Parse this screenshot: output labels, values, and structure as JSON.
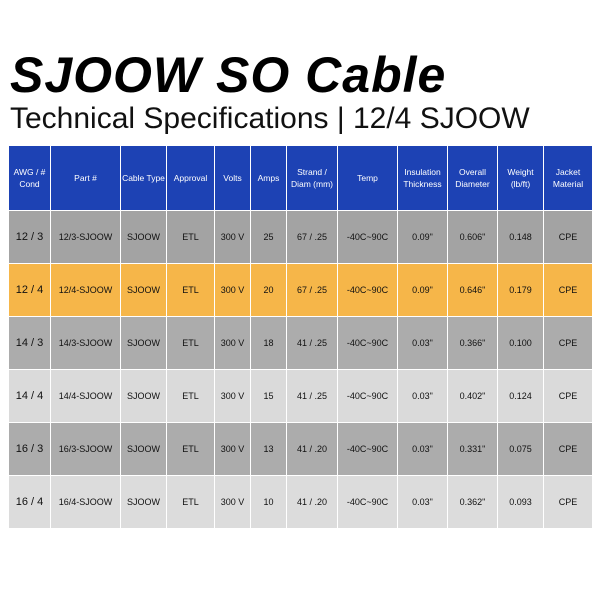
{
  "header": {
    "title": "SJOOW SO Cable",
    "subtitle": "Technical Specifications | 12/4 SJOOW"
  },
  "table": {
    "columns": [
      "AWG / # Cond",
      "Part #",
      "Cable Type",
      "Approval",
      "Volts",
      "Amps",
      "Strand / Diam (mm)",
      "Temp",
      "Insulation Thickness",
      "Overall Diameter",
      "Weight (lb/ft)",
      "Jacket Material"
    ],
    "rows": [
      [
        "12 / 3",
        "12/3-SJOOW",
        "SJOOW",
        "ETL",
        "300 V",
        "25",
        "67 / .25",
        "-40C~90C",
        "0.09\"",
        "0.606\"",
        "0.148",
        "CPE"
      ],
      [
        "12 / 4",
        "12/4-SJOOW",
        "SJOOW",
        "ETL",
        "300 V",
        "20",
        "67 / .25",
        "-40C~90C",
        "0.09\"",
        "0.646\"",
        "0.179",
        "CPE"
      ],
      [
        "14 / 3",
        "14/3-SJOOW",
        "SJOOW",
        "ETL",
        "300 V",
        "18",
        "41 / .25",
        "-40C~90C",
        "0.03\"",
        "0.366\"",
        "0.100",
        "CPE"
      ],
      [
        "14 / 4",
        "14/4-SJOOW",
        "SJOOW",
        "ETL",
        "300 V",
        "15",
        "41 / .25",
        "-40C~90C",
        "0.03\"",
        "0.402\"",
        "0.124",
        "CPE"
      ],
      [
        "16 / 3",
        "16/3-SJOOW",
        "SJOOW",
        "ETL",
        "300 V",
        "13",
        "41 / .20",
        "-40C~90C",
        "0.03\"",
        "0.331\"",
        "0.075",
        "CPE"
      ],
      [
        "16 / 4",
        "16/4-SJOOW",
        "SJOOW",
        "ETL",
        "300 V",
        "10",
        "41 / .20",
        "-40C~90C",
        "0.03\"",
        "0.362\"",
        "0.093",
        "CPE"
      ]
    ]
  }
}
